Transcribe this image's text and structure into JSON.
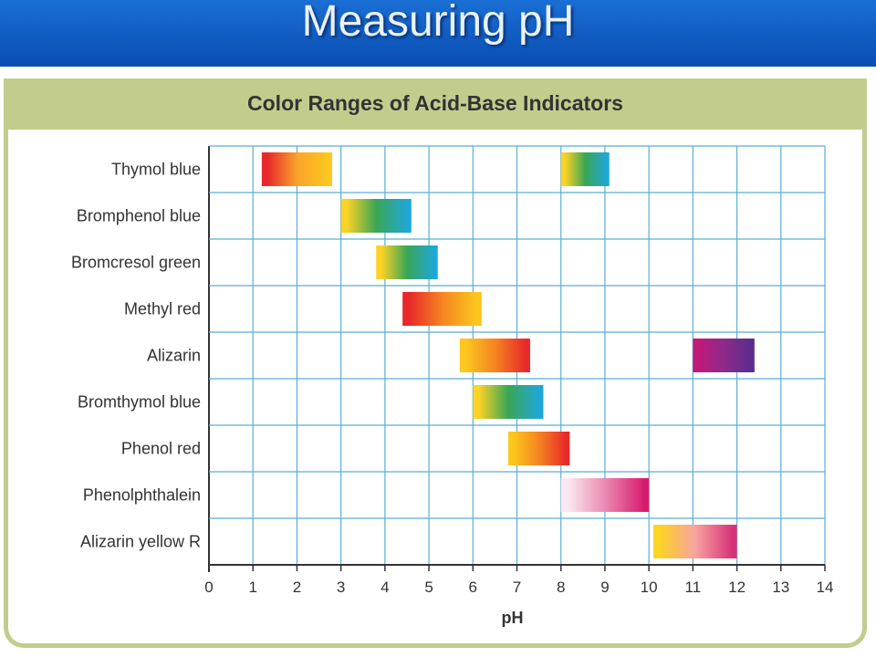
{
  "slide": {
    "title": "Measuring pH"
  },
  "chart_data": {
    "type": "bar",
    "title": "Color Ranges of Acid-Base Indicators",
    "xlabel": "pH",
    "ylabel": "",
    "xlim": [
      0,
      14
    ],
    "x_ticks": [
      "0",
      "1",
      "2",
      "3",
      "4",
      "5",
      "6",
      "7",
      "8",
      "9",
      "10",
      "11",
      "12",
      "13",
      "14"
    ],
    "grid": true,
    "categories": [
      "Thymol blue",
      "Bromphenol blue",
      "Bromcresol green",
      "Methyl red",
      "Alizarin",
      "Bromthymol blue",
      "Phenol red",
      "Phenolphthalein",
      "Alizarin yellow R"
    ],
    "ranges": [
      {
        "indicator": "Thymol blue",
        "from": 1.2,
        "to": 2.8,
        "colors": [
          "#e8282a",
          "#f9a32a",
          "#fcc81e"
        ]
      },
      {
        "indicator": "Thymol blue",
        "from": 8.0,
        "to": 9.1,
        "colors": [
          "#fdd325",
          "#3aa655",
          "#1fa7d9"
        ]
      },
      {
        "indicator": "Bromphenol blue",
        "from": 3.0,
        "to": 4.6,
        "colors": [
          "#fdd325",
          "#3aa655",
          "#1fa7d9"
        ]
      },
      {
        "indicator": "Bromcresol green",
        "from": 3.8,
        "to": 5.2,
        "colors": [
          "#fdd325",
          "#3aa655",
          "#1fa7d9"
        ]
      },
      {
        "indicator": "Methyl red",
        "from": 4.4,
        "to": 6.2,
        "colors": [
          "#e8282a",
          "#f58420",
          "#fcc81e"
        ]
      },
      {
        "indicator": "Alizarin",
        "from": 5.7,
        "to": 7.3,
        "colors": [
          "#fcc81e",
          "#f58420",
          "#e8282a"
        ]
      },
      {
        "indicator": "Alizarin",
        "from": 11.0,
        "to": 12.4,
        "colors": [
          "#c2187a",
          "#8e2a8a",
          "#5a2d8c"
        ]
      },
      {
        "indicator": "Bromthymol blue",
        "from": 6.0,
        "to": 7.6,
        "colors": [
          "#fdd325",
          "#3aa655",
          "#1fa7d9"
        ]
      },
      {
        "indicator": "Phenol red",
        "from": 6.8,
        "to": 8.2,
        "colors": [
          "#fcc81e",
          "#f58420",
          "#e8282a"
        ]
      },
      {
        "indicator": "Phenolphthalein",
        "from": 8.0,
        "to": 10.0,
        "colors": [
          "#fbe8ef",
          "#eb8ab3",
          "#d81b6e"
        ]
      },
      {
        "indicator": "Alizarin yellow R",
        "from": 10.1,
        "to": 12.0,
        "colors": [
          "#fdd325",
          "#f7a3a0",
          "#d8337a"
        ]
      }
    ]
  }
}
